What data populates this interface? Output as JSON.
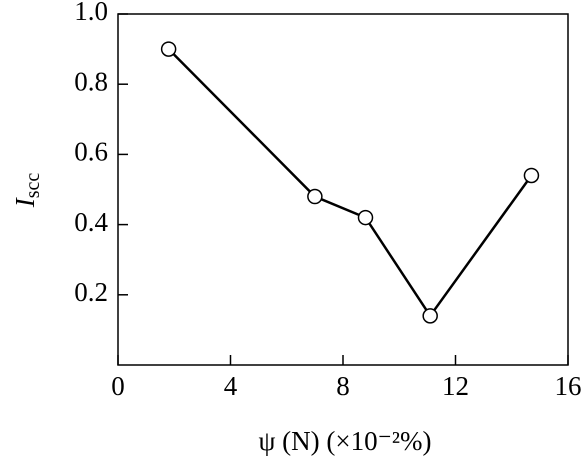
{
  "chart_data": {
    "type": "line",
    "x_label": "ψ (N) (×10⁻²%)",
    "y_label": {
      "main": "I",
      "sub": "scc"
    },
    "x": [
      1.8,
      7.0,
      8.8,
      11.1,
      14.7
    ],
    "series": [
      {
        "color": "#000000",
        "values": [
          0.9,
          0.48,
          0.42,
          0.14,
          0.54
        ]
      }
    ],
    "xlim": [
      0,
      16
    ],
    "xticks": [
      0,
      4,
      8,
      12,
      16
    ],
    "ylim": [
      0,
      1
    ],
    "yticks": [
      0.2,
      0.4,
      0.6,
      0.8,
      {
        "value": 1,
        "label": "1.0"
      }
    ],
    "grid": false,
    "markers": "open-circle"
  }
}
